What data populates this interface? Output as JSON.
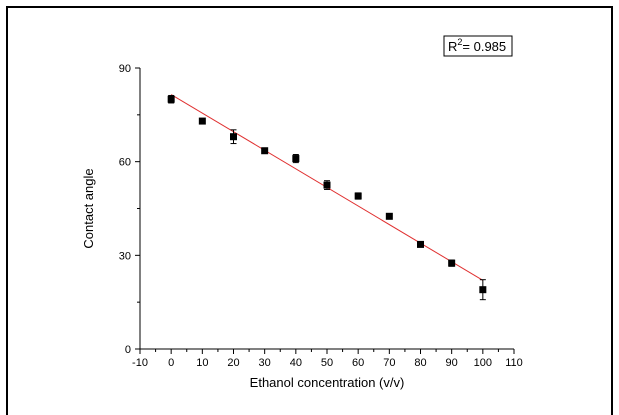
{
  "chart_data": {
    "type": "scatter",
    "xlabel": "Ethanol concentration (v/v)",
    "ylabel": "Contact angle",
    "xlim": [
      -10,
      110
    ],
    "ylim": [
      0,
      90
    ],
    "x_ticks": [
      -10,
      0,
      10,
      20,
      30,
      40,
      50,
      60,
      70,
      80,
      90,
      100,
      110
    ],
    "y_ticks": [
      0,
      30,
      60,
      90
    ],
    "grid": false,
    "series": [
      {
        "x": [
          0,
          10,
          20,
          30,
          40,
          50,
          60,
          70,
          80,
          90,
          100
        ],
        "y": [
          80,
          73,
          68,
          63.5,
          61,
          52.5,
          49,
          42.5,
          33.5,
          27.5,
          19
        ],
        "error": [
          1.2,
          0.6,
          2.2,
          0.8,
          1.3,
          1.4,
          1.0,
          0.5,
          0.6,
          1.0,
          3.2
        ],
        "marker": "square",
        "color": "#000000"
      }
    ],
    "fit_line": {
      "x": [
        0,
        100
      ],
      "y": [
        81.5,
        22
      ],
      "color": "#e03030"
    },
    "annotation": {
      "prefix": "R",
      "superscript": "2",
      "text": "= 0.985",
      "placement": "top-right"
    }
  }
}
